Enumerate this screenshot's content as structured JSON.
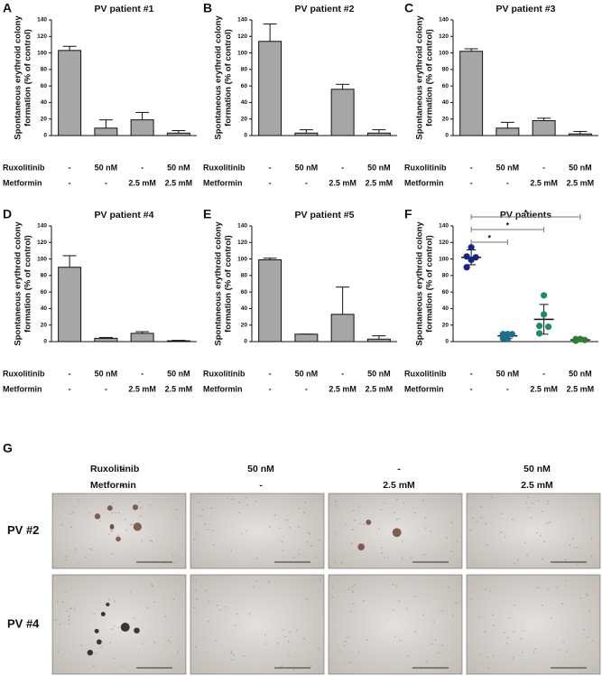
{
  "chart_data": [
    {
      "type": "bar",
      "panel": "A",
      "title": "PV patient  #1",
      "ylabel": [
        "Spontaneous erythroid colony",
        "formation (% of control)"
      ],
      "row_labels": [
        "Ruxolitinib",
        "Metformin"
      ],
      "treatments": [
        [
          "-",
          "50 nM",
          "-",
          "50 nM"
        ],
        [
          "-",
          "-",
          "2.5 mM",
          "2.5 mM"
        ]
      ],
      "values": [
        103,
        9,
        19,
        3
      ],
      "errors": [
        5,
        10,
        9,
        3
      ],
      "color": "#a6a6a8",
      "ylim": [
        0,
        140
      ],
      "yticks": [
        0,
        20,
        40,
        60,
        80,
        100,
        120,
        140
      ]
    },
    {
      "type": "bar",
      "panel": "B",
      "title": "PV patient  #2",
      "ylabel": [
        "Spontaneous erythroid colony",
        "formation (% of control)"
      ],
      "row_labels": [
        "Ruxolitinib",
        "Metformin"
      ],
      "treatments": [
        [
          "-",
          "50 nM",
          "-",
          "50 nM"
        ],
        [
          "-",
          "-",
          "2.5 mM",
          "2.5 mM"
        ]
      ],
      "values": [
        114,
        3,
        56,
        3
      ],
      "errors": [
        21,
        4,
        6,
        4
      ],
      "color": "#a6a6a8",
      "ylim": [
        0,
        140
      ],
      "yticks": [
        0,
        20,
        40,
        60,
        80,
        100,
        120,
        140
      ]
    },
    {
      "type": "bar",
      "panel": "C",
      "title": "PV patient  #3",
      "ylabel": [
        "Spontaneous erythroid colony",
        "formation (% of control)"
      ],
      "row_labels": [
        "Ruxolitinib",
        "Metformin"
      ],
      "treatments": [
        [
          "-",
          "50 nM",
          "-",
          "50 nM"
        ],
        [
          "-",
          "-",
          "2.5 mM",
          "2.5 mM"
        ]
      ],
      "values": [
        102,
        9,
        18,
        2
      ],
      "errors": [
        3,
        7,
        3,
        3
      ],
      "color": "#a6a6a8",
      "ylim": [
        0,
        140
      ],
      "yticks": [
        0,
        20,
        40,
        60,
        80,
        100,
        120,
        140
      ]
    },
    {
      "type": "bar",
      "panel": "D",
      "title": "PV patient  #4",
      "ylabel": [
        "Spontaneous erythroid colony",
        "formation (% of control)"
      ],
      "row_labels": [
        "Ruxolitinib",
        "Metformin"
      ],
      "treatments": [
        [
          "-",
          "50 nM",
          "-",
          "50 nM"
        ],
        [
          "-",
          "-",
          "2.5 mM",
          "2.5 mM"
        ]
      ],
      "values": [
        90,
        4,
        10,
        1
      ],
      "errors": [
        14,
        1,
        2,
        0.5
      ],
      "color": "#a6a6a8",
      "ylim": [
        0,
        140
      ],
      "yticks": [
        0,
        20,
        40,
        60,
        80,
        100,
        120,
        140
      ]
    },
    {
      "type": "bar",
      "panel": "E",
      "title": "PV patient  #5",
      "ylabel": [
        "Spontaneous erythroid colony",
        "formation (% of control)"
      ],
      "row_labels": [
        "Ruxolitinib",
        "Metformin"
      ],
      "treatments": [
        [
          "-",
          "50 nM",
          "-",
          "50 nM"
        ],
        [
          "-",
          "-",
          "2.5 mM",
          "2.5 mM"
        ]
      ],
      "values": [
        99,
        9,
        33,
        3
      ],
      "errors": [
        2,
        0,
        33,
        4
      ],
      "color": "#a6a6a8",
      "ylim": [
        0,
        140
      ],
      "yticks": [
        0,
        20,
        40,
        60,
        80,
        100,
        120,
        140
      ]
    },
    {
      "type": "scatter",
      "panel": "F",
      "title": "PV patients",
      "ylabel": [
        "Spontaneous erythroid colony",
        "formation (% of control)"
      ],
      "row_labels": [
        "Ruxolitinib",
        "Metformin"
      ],
      "treatments": [
        [
          "-",
          "50 nM",
          "-",
          "50 nM"
        ],
        [
          "-",
          "-",
          "2.5 mM",
          "2.5 mM"
        ]
      ],
      "groups": [
        {
          "color": "#1a237e",
          "values": [
            103,
            114,
            102,
            90,
            99
          ]
        },
        {
          "color": "#1f6f8b",
          "values": [
            9,
            3,
            9,
            4,
            9
          ]
        },
        {
          "color": "#1f8a6a",
          "values": [
            19,
            56,
            18,
            10,
            33
          ]
        },
        {
          "color": "#2e7d32",
          "values": [
            3,
            3,
            2,
            1,
            3
          ]
        }
      ],
      "means": [
        102,
        7,
        27,
        2
      ],
      "sds": [
        9,
        3,
        18,
        1
      ],
      "comparisons": [
        {
          "groups": [
            0,
            1
          ],
          "label": "*"
        },
        {
          "groups": [
            0,
            2
          ],
          "label": "*"
        },
        {
          "groups": [
            0,
            3
          ],
          "label": "*"
        }
      ],
      "ylim": [
        0,
        140
      ],
      "yticks": [
        0,
        20,
        40,
        60,
        80,
        100,
        120,
        140
      ]
    }
  ],
  "image_panel": {
    "panel": "G",
    "row_labels": [
      "Ruxolitinib",
      "Metformin"
    ],
    "treatments": [
      [
        "-",
        "50 nM",
        "-",
        "50 nM"
      ],
      [
        "-",
        "-",
        "2.5 mM",
        "2.5 mM"
      ]
    ],
    "samples": [
      "PV #2",
      "PV #4"
    ]
  }
}
